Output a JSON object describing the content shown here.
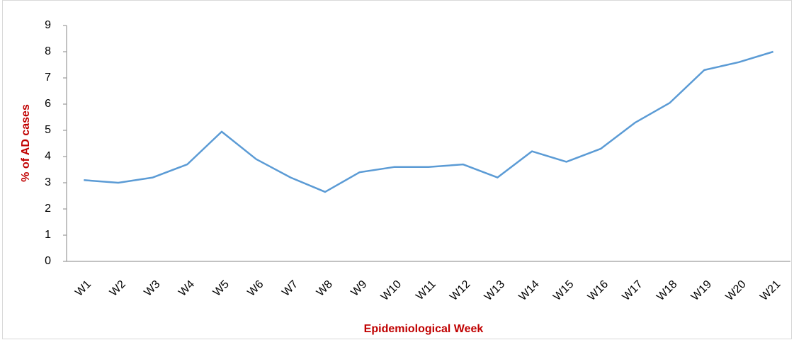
{
  "chart_data": {
    "type": "line",
    "x_label": "Epidemiological  Week",
    "y_label": "% of AD cases",
    "categories": [
      "W1",
      "W2",
      "W3",
      "W4",
      "W5",
      "W6",
      "W7",
      "W8",
      "W9",
      "W10",
      "W11",
      "W12",
      "W13",
      "W14",
      "W15",
      "W16",
      "W17",
      "W18",
      "W19",
      "W20",
      "W21"
    ],
    "series": [
      {
        "name": "% of AD cases",
        "color": "#5b9bd5",
        "values": [
          3.1,
          3.0,
          3.2,
          3.7,
          4.95,
          3.9,
          3.2,
          2.65,
          3.4,
          3.6,
          3.6,
          3.7,
          3.2,
          4.2,
          3.8,
          4.3,
          5.3,
          6.05,
          7.3,
          7.6,
          8.0
        ]
      }
    ],
    "ylim": [
      0,
      9
    ],
    "yticks": [
      0,
      1,
      2,
      3,
      4,
      5,
      6,
      7,
      8,
      9
    ],
    "grid": false,
    "legend": false
  }
}
